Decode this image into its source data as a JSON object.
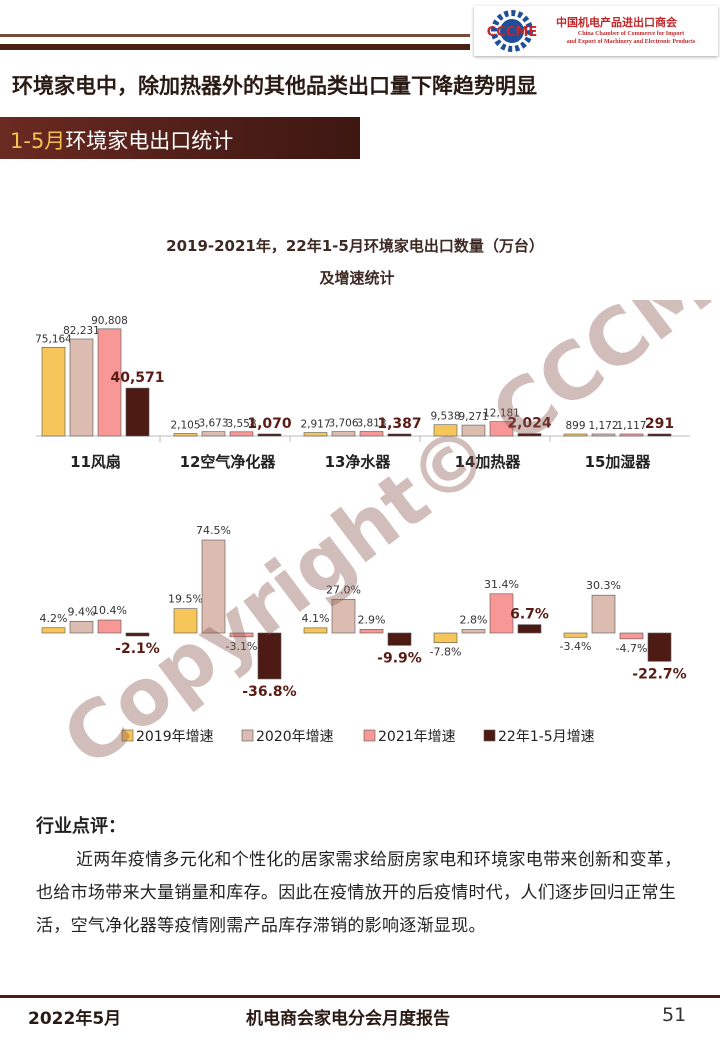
{
  "header": {
    "logo_text": "CCCME",
    "org_name_cn": "中国机电产品进出口商会",
    "org_name_en": [
      "China Chamber of Commerce for Import",
      "and Export of Machinery and Electronic Products"
    ]
  },
  "headline": "环境家电中，除加热器外的其他品类出口量下降趋势明显",
  "section": {
    "prefix": "1-5月",
    "title": "环境家电出口统计"
  },
  "chart_data": [
    {
      "type": "bar",
      "title": "2019-2021年，22年1-5月环境家电出口数量（万台）",
      "subtitle": "及增速统计",
      "categories": [
        "11风扇",
        "12空气净化器",
        "13净水器",
        "14加热器",
        "15加湿器"
      ],
      "series": [
        {
          "name": "2019年增速",
          "values": [
            75164,
            2105,
            2917,
            9538,
            899
          ],
          "labels": [
            "75,164",
            "2,105",
            "2,917",
            "9,538",
            "899"
          ]
        },
        {
          "name": "2020年增速",
          "values": [
            82231,
            3673,
            3706,
            9271,
            1172
          ],
          "labels": [
            "82,231",
            "3,673",
            "3,706",
            "9,271",
            "1,172"
          ]
        },
        {
          "name": "2021年增速",
          "values": [
            90808,
            3558,
            3813,
            12181,
            1117
          ],
          "labels": [
            "90,808",
            "3,558",
            "3,813",
            "12,181",
            "1,117"
          ]
        },
        {
          "name": "22年1-5月增速",
          "values": [
            40571,
            1070,
            1387,
            2024,
            291
          ],
          "labels": [
            "40,571",
            "1,070",
            "1,387",
            "2,024",
            "291"
          ]
        }
      ],
      "ylim": [
        0,
        100000
      ]
    },
    {
      "type": "bar",
      "categories": [
        "11风扇",
        "12空气净化器",
        "13净水器",
        "14加热器",
        "15加湿器"
      ],
      "series": [
        {
          "name": "2019年增速",
          "values": [
            4.2,
            19.5,
            4.1,
            -7.8,
            -3.4
          ],
          "labels": [
            "4.2%",
            "19.5%",
            "4.1%",
            "-7.8%",
            "-3.4%"
          ]
        },
        {
          "name": "2020年增速",
          "values": [
            9.4,
            74.5,
            27.0,
            2.8,
            30.3
          ],
          "labels": [
            "9.4%",
            "74.5%",
            "27.0%",
            "2.8%",
            "30.3%"
          ]
        },
        {
          "name": "2021年增速",
          "values": [
            10.4,
            -3.1,
            2.9,
            31.4,
            -4.7
          ],
          "labels": [
            "10.4%",
            "-3.1%",
            "2.9%",
            "31.4%",
            "-4.7%"
          ]
        },
        {
          "name": "22年1-5月增速",
          "values": [
            -2.1,
            -36.8,
            -9.9,
            6.7,
            -22.7
          ],
          "labels": [
            "-2.1%",
            "-36.8%",
            "-9.9%",
            "6.7%",
            "-22.7%"
          ]
        }
      ],
      "legend": "bottom",
      "ylim": [
        -40,
        80
      ]
    }
  ],
  "colors": {
    "series": [
      "#f7c65a",
      "#dcbcb0",
      "#f79896",
      "#4e1a14"
    ],
    "axis": "#bbbbbb",
    "text": "#333333",
    "title": "#3e2a24"
  },
  "watermark": "Copyright© CCCME",
  "commentary": {
    "title": "行业点评：",
    "body": "近两年疫情多元化和个性化的居家需求给厨房家电和环境家电带来创新和变革，也给市场带来大量销量和库存。因此在疫情放开的后疫情时代，人们逐步回归正常生活，空气净化器等疫情刚需产品库存滞销的影响逐渐显现。"
  },
  "footer": {
    "date": "2022年5月",
    "report": "机电商会家电分会月度报告",
    "page": "51"
  }
}
